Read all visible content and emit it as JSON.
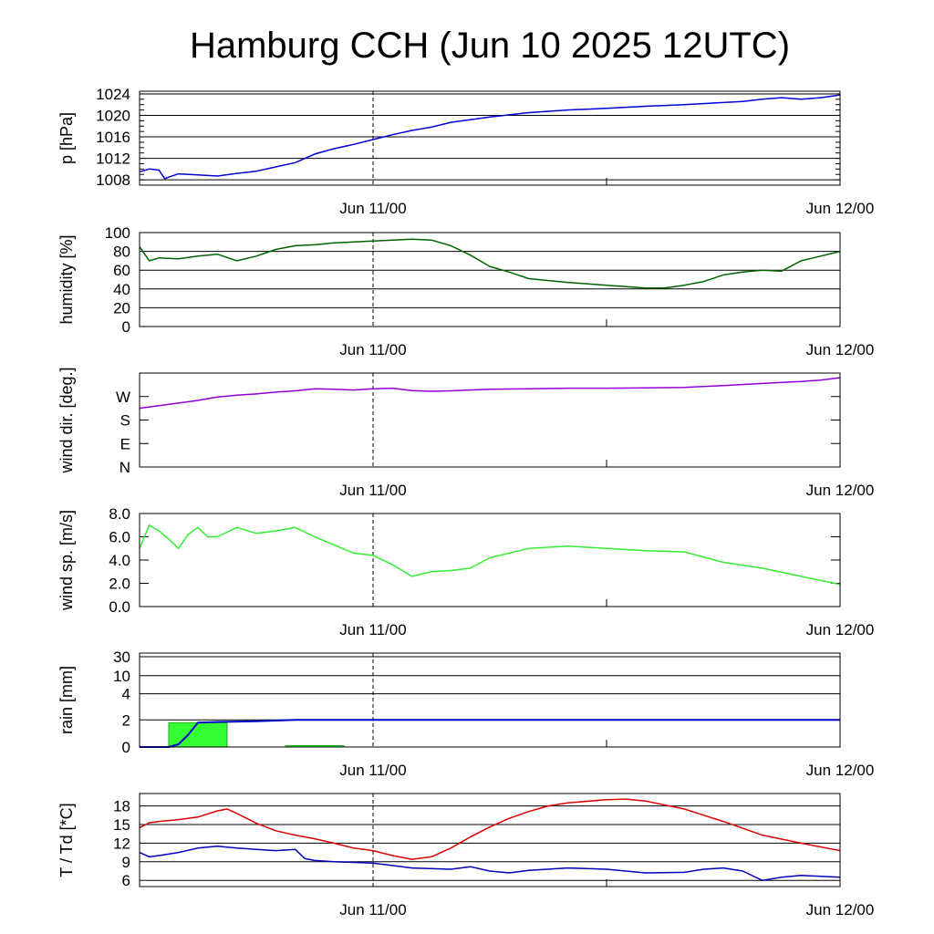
{
  "title": "Hamburg CCH (Jun 10 2025 12UTC)",
  "colors": {
    "pressure": "#0000dd",
    "humidity": "#006400",
    "wind_dir": "#9400d3",
    "wind_speed": "#33ee33",
    "rain_accum": "#0000cc",
    "rain_bars": "#33ff33",
    "rain_bars_edge": "#22aa22",
    "temperature": "#dd0000",
    "dewpoint": "#0000bb"
  },
  "chart_data": [
    {
      "type": "line",
      "ylabel": "p [hPa]",
      "ylim": [
        1007,
        1024.5
      ],
      "yticks": [
        1008,
        1012,
        1016,
        1020,
        1024
      ],
      "ytick_labels": [
        "1008",
        "1012",
        "1016",
        "1020",
        "1024"
      ],
      "xlim": [
        0,
        36
      ],
      "xtick_labels": [
        {
          "x": 12,
          "label": "Jun 11/00"
        },
        {
          "x": 36,
          "label": "Jun 12/00"
        }
      ],
      "grid": true,
      "series": [
        {
          "color_key": "pressure",
          "x": [
            0,
            0.5,
            1,
            1.3,
            1.5,
            2,
            3,
            4,
            5,
            6,
            7,
            8,
            9,
            10,
            11,
            12,
            13,
            14,
            15,
            16,
            17,
            18,
            20,
            22,
            24,
            26,
            28,
            30,
            31,
            32,
            33,
            34,
            35,
            36
          ],
          "y": [
            1009.5,
            1010.0,
            1009.8,
            1008.2,
            1008.5,
            1009.1,
            1008.9,
            1008.7,
            1009.2,
            1009.6,
            1010.4,
            1011.2,
            1012.8,
            1013.8,
            1014.6,
            1015.5,
            1016.4,
            1017.2,
            1017.8,
            1018.7,
            1019.2,
            1019.7,
            1020.5,
            1021.0,
            1021.3,
            1021.7,
            1022.0,
            1022.4,
            1022.6,
            1023.0,
            1023.3,
            1023.0,
            1023.3,
            1023.8
          ]
        }
      ]
    },
    {
      "type": "line",
      "ylabel": "humidity [%]",
      "ylim": [
        0,
        100
      ],
      "yticks": [
        0,
        20,
        40,
        60,
        80,
        100
      ],
      "ytick_labels": [
        "0",
        "20",
        "40",
        "60",
        "80",
        "100"
      ],
      "xlim": [
        0,
        36
      ],
      "xtick_labels": [
        {
          "x": 12,
          "label": "Jun 11/00"
        },
        {
          "x": 36,
          "label": "Jun 12/00"
        }
      ],
      "grid": true,
      "series": [
        {
          "color_key": "humidity",
          "x": [
            0,
            0.5,
            1,
            2,
            3,
            4,
            5,
            6,
            7,
            8,
            9,
            10,
            11,
            12,
            13,
            14,
            15,
            16,
            17,
            18,
            19,
            20,
            22,
            24,
            26,
            27,
            28,
            29,
            30,
            31,
            32,
            33,
            34,
            35,
            36
          ],
          "y": [
            85,
            70,
            73,
            72,
            75,
            77,
            70,
            75,
            82,
            86,
            87,
            89,
            90,
            91,
            92,
            93,
            92,
            86,
            76,
            64,
            58,
            51,
            47,
            44,
            41,
            41,
            44,
            48,
            55,
            58,
            60,
            59,
            70,
            75,
            80
          ]
        }
      ]
    },
    {
      "type": "line",
      "ylabel": "wind dir. [deg.]",
      "ylim": [
        0,
        360
      ],
      "yticks": [
        0,
        90,
        180,
        270
      ],
      "ytick_labels": [
        "N",
        "E",
        "S",
        "W"
      ],
      "xlim": [
        0,
        36
      ],
      "xtick_labels": [
        {
          "x": 12,
          "label": "Jun 11/00"
        },
        {
          "x": 36,
          "label": "Jun 12/00"
        }
      ],
      "grid": false,
      "series": [
        {
          "color_key": "wind_dir",
          "x": [
            0,
            1,
            2,
            3,
            4,
            5,
            6,
            7,
            8,
            9,
            10,
            11,
            12,
            13,
            14,
            15,
            16,
            18,
            20,
            22,
            24,
            26,
            28,
            30,
            32,
            34,
            35,
            36
          ],
          "y": [
            225,
            235,
            245,
            255,
            268,
            275,
            280,
            287,
            292,
            300,
            298,
            295,
            300,
            302,
            293,
            290,
            292,
            298,
            300,
            302,
            302,
            303,
            305,
            312,
            320,
            328,
            333,
            342
          ]
        }
      ]
    },
    {
      "type": "line",
      "ylabel": "wind sp. [m/s]",
      "ylim": [
        0,
        8
      ],
      "yticks": [
        0,
        2,
        4,
        6,
        8
      ],
      "ytick_labels": [
        "0.0",
        "2.0",
        "4.0",
        "6.0",
        "8.0"
      ],
      "xlim": [
        0,
        36
      ],
      "xtick_labels": [
        {
          "x": 12,
          "label": "Jun 11/00"
        },
        {
          "x": 36,
          "label": "Jun 12/00"
        }
      ],
      "grid": false,
      "series": [
        {
          "color_key": "wind_speed",
          "x": [
            0,
            0.5,
            1,
            1.5,
            2,
            2.5,
            3,
            3.5,
            4,
            5,
            6,
            7,
            8,
            9,
            10,
            11,
            12,
            13,
            14,
            15,
            16,
            17,
            18,
            20,
            22,
            24,
            26,
            28,
            30,
            32,
            34,
            36
          ],
          "y": [
            5.0,
            7.0,
            6.5,
            5.8,
            5.0,
            6.2,
            6.8,
            6.0,
            6.0,
            6.8,
            6.3,
            6.5,
            6.8,
            6.0,
            5.3,
            4.6,
            4.4,
            3.6,
            2.6,
            3.0,
            3.1,
            3.3,
            4.2,
            5.0,
            5.2,
            5.0,
            4.8,
            4.7,
            3.8,
            3.3,
            2.6,
            1.9
          ]
        }
      ]
    },
    {
      "type": "bar",
      "ylabel": "rain [mm]",
      "y_scale": "nonlinear",
      "yticks": [
        0,
        2,
        4,
        10,
        30
      ],
      "ytick_labels": [
        "0",
        "2",
        "4",
        "10",
        "30"
      ],
      "xlim": [
        0,
        36
      ],
      "xtick_labels": [
        {
          "x": 12,
          "label": "Jun 11/00"
        },
        {
          "x": 36,
          "label": "Jun 12/00"
        }
      ],
      "grid": true,
      "bars": [
        {
          "x_start": 1.5,
          "x_end": 4.5,
          "value": 1.8
        },
        {
          "x_start": 7.5,
          "x_end": 10.5,
          "value": 0.1
        }
      ],
      "series": [
        {
          "name": "",
          "color_key": "rain_accum",
          "x": [
            0,
            1.5,
            2,
            2.5,
            3,
            4,
            6,
            8,
            10,
            12,
            36
          ],
          "y": [
            0,
            0,
            0.2,
            0.9,
            1.8,
            1.85,
            1.9,
            2.0,
            2.0,
            2.0,
            2.0
          ]
        }
      ]
    },
    {
      "type": "line",
      "ylabel": "T / Td [*C]",
      "ylim": [
        5,
        20
      ],
      "yticks": [
        6,
        9,
        12,
        15,
        18
      ],
      "ytick_labels": [
        "6",
        "9",
        "12",
        "15",
        "18"
      ],
      "xlim": [
        0,
        36
      ],
      "xtick_labels": [
        {
          "x": 12,
          "label": "Jun 11/00"
        },
        {
          "x": 36,
          "label": "Jun 12/00"
        }
      ],
      "grid": true,
      "series": [
        {
          "color_key": "temperature",
          "x": [
            0,
            0.5,
            1,
            2,
            3,
            4,
            4.5,
            5,
            6,
            7,
            8,
            9,
            10,
            11,
            12,
            13,
            14,
            15,
            16,
            17,
            18,
            19,
            20,
            21,
            22,
            24,
            25,
            26,
            28,
            30,
            32,
            34,
            36
          ],
          "y": [
            14.5,
            15.3,
            15.5,
            15.8,
            16.2,
            17.2,
            17.5,
            16.8,
            15.2,
            14.0,
            13.3,
            12.7,
            12.0,
            11.2,
            10.8,
            10.0,
            9.4,
            9.8,
            11.2,
            13.0,
            14.6,
            16.0,
            17.1,
            18.0,
            18.5,
            19.0,
            19.1,
            18.8,
            17.5,
            15.5,
            13.3,
            12.0,
            10.8
          ]
        },
        {
          "color_key": "dewpoint",
          "x": [
            0,
            0.5,
            1,
            2,
            3,
            4,
            5,
            6,
            7,
            8,
            8.5,
            9,
            10,
            12,
            14,
            16,
            17,
            18,
            19,
            20,
            22,
            24,
            26,
            28,
            29,
            30,
            31,
            32,
            33,
            34,
            36
          ],
          "y": [
            10.5,
            9.8,
            10.0,
            10.5,
            11.2,
            11.5,
            11.2,
            11.0,
            10.8,
            11.0,
            9.5,
            9.2,
            9.0,
            8.8,
            8.0,
            7.8,
            8.2,
            7.5,
            7.2,
            7.6,
            8.0,
            7.8,
            7.2,
            7.3,
            7.8,
            8.0,
            7.5,
            6.0,
            6.5,
            6.8,
            6.5
          ]
        }
      ]
    }
  ]
}
